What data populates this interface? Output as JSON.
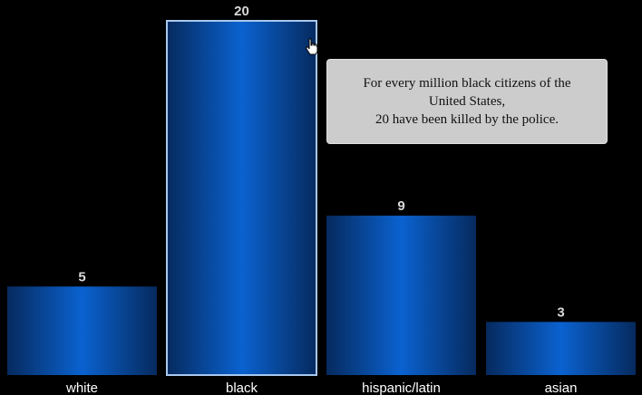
{
  "chart_data": {
    "type": "bar",
    "title": "",
    "xlabel": "",
    "ylabel": "",
    "categories": [
      "white",
      "black",
      "hispanic/latin",
      "asian"
    ],
    "values": [
      5,
      20,
      9,
      3
    ],
    "ylim": [
      0,
      20
    ],
    "grid": false,
    "highlighted_index": 1
  },
  "tooltip": {
    "line1": "For every million black citizens of the",
    "line2": "United States,",
    "line3": "20 have been killed by the police."
  },
  "colors": {
    "background": "#000000",
    "bar_center": "#0a62d0",
    "bar_edge": "#062a5e",
    "highlight_stroke": "#a8c8ee",
    "tooltip_bg": "#cccccc"
  },
  "icons": {
    "cursor": "hand-pointer-icon"
  }
}
